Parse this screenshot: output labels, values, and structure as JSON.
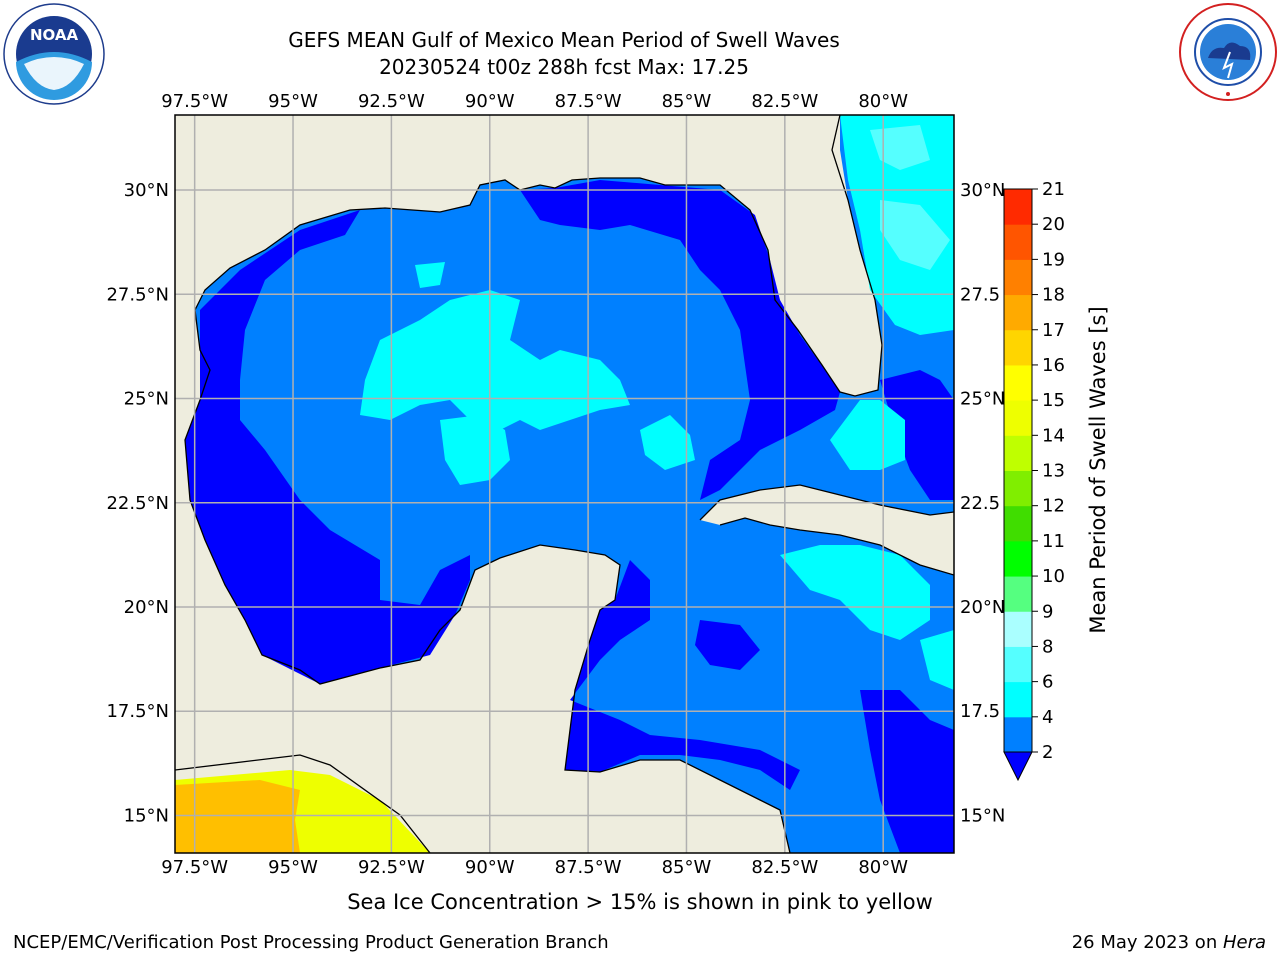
{
  "title": {
    "line1": "GEFS MEAN Gulf of Mexico Mean Period of Swell Waves",
    "line2": "20230524 t00z 288h fcst   Max: 17.25"
  },
  "map": {
    "lon_labels": [
      "97.5°W",
      "95°W",
      "92.5°W",
      "90°W",
      "87.5°W",
      "85°W",
      "82.5°W",
      "80°W"
    ],
    "lat_labels_left": [
      "30°N",
      "27.5°N",
      "25°N",
      "22.5°N",
      "20°N",
      "17.5°N",
      "15°N"
    ],
    "lat_labels_right": [
      "30°N",
      "27.5",
      "25°N",
      "22.5",
      "20°N",
      "17.5",
      "15°N"
    ],
    "lon_range": [
      -98,
      -78.2
    ],
    "lat_range": [
      14.1,
      31.8
    ],
    "colors": {
      "land": "#eeedde",
      "period_2_4": "#0080ff",
      "period_under_2": "#0000ff",
      "period_4_6": "#00ffff",
      "period_6_8": "#55ffff",
      "period_8_9": "#aaffff",
      "ice_yellow": "#ffff00",
      "ice_orange": "#ffbf00",
      "gridline": "#b0b0b0"
    }
  },
  "colorbar": {
    "label": "Mean Period of Swell Waves [s]",
    "ticks": [
      "2",
      "4",
      "6",
      "8",
      "9",
      "10",
      "11",
      "12",
      "13",
      "14",
      "15",
      "16",
      "17",
      "18",
      "19",
      "20",
      "21"
    ],
    "colors": [
      "#0080ff",
      "#00ffff",
      "#55ffff",
      "#aaffff",
      "#55ff80",
      "#00ff00",
      "#40dd00",
      "#80ee00",
      "#bfff00",
      "#eeff00",
      "#ffff00",
      "#ffd500",
      "#ffaa00",
      "#ff8000",
      "#ff5500",
      "#ff2a00"
    ],
    "extend_color": "#0000ff"
  },
  "logos": {
    "noaa": "NOAA",
    "nws": "NATIONAL WEATHER SERVICE"
  },
  "footer": {
    "note": "Sea Ice Concentration > 15% is shown in pink to yellow",
    "org": "NCEP/EMC/Verification Post Processing Product Generation Branch",
    "date": "26 May 2023 on ",
    "host": "Hera"
  }
}
